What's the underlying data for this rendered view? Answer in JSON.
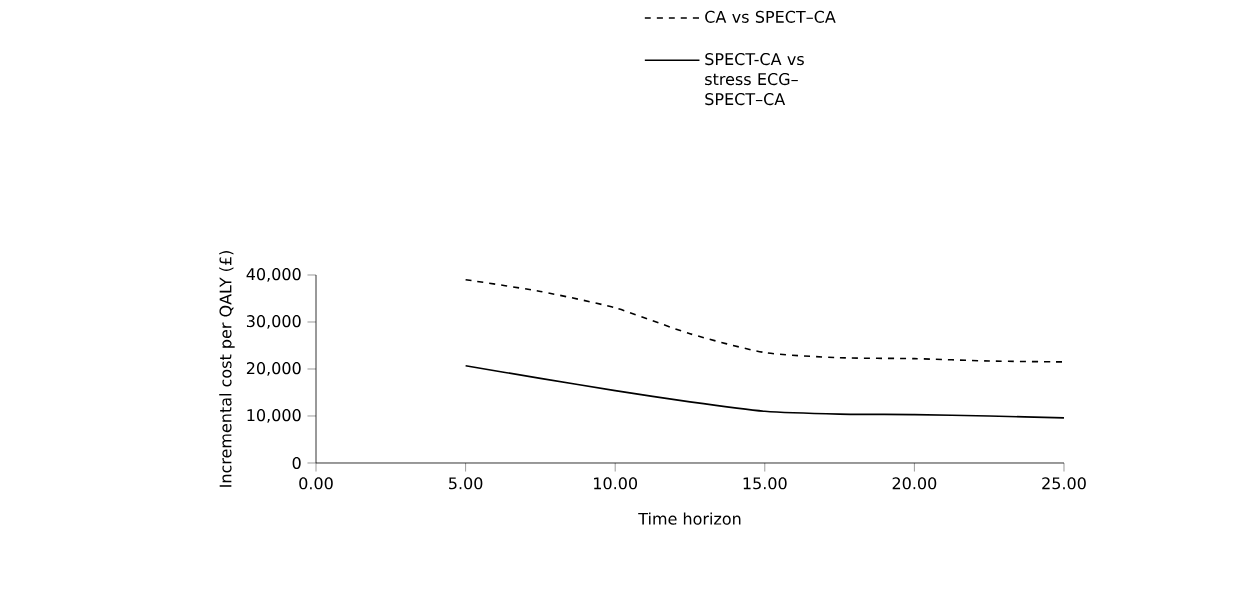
{
  "chart_data": {
    "type": "line",
    "xlabel": "Time horizon",
    "ylabel": "Incremental cost per QALY (£)",
    "xlim": [
      0,
      25
    ],
    "ylim": [
      0,
      40000
    ],
    "xticks": [
      {
        "value": 0,
        "label": "0.00"
      },
      {
        "value": 5,
        "label": "5.00"
      },
      {
        "value": 10,
        "label": "10.00"
      },
      {
        "value": 15,
        "label": "15.00"
      },
      {
        "value": 20,
        "label": "20.00"
      },
      {
        "value": 25,
        "label": "25.00"
      }
    ],
    "yticks": [
      0,
      {
        "value": 10000,
        "label": "10,000"
      },
      {
        "value": 20000,
        "label": "20,000"
      },
      {
        "value": 30000,
        "label": "30,000"
      },
      {
        "value": 40000,
        "label": "40,000"
      }
    ],
    "x": [
      5,
      7.5,
      10,
      12.5,
      15,
      17.5,
      20,
      22.5,
      25
    ],
    "series": [
      {
        "name": "CA vs SPECT–CA",
        "color": "#000000",
        "line_style": "dashed",
        "values": [
          39000,
          36500,
          33000,
          27500,
          23500,
          22400,
          22200,
          21700,
          21500
        ]
      },
      {
        "name": "SPECT-CA vs stress ECG–SPECT–CA",
        "color": "#000000",
        "line_style": "solid",
        "values": [
          20700,
          18000,
          15400,
          13000,
          11000,
          10400,
          10300,
          10000,
          9600
        ]
      }
    ],
    "legend": "top right",
    "grid": false,
    "marker": "none"
  }
}
